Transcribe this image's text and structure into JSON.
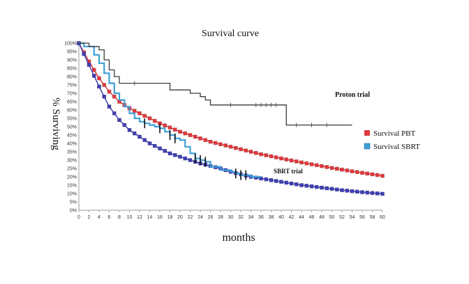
{
  "chart_data": {
    "type": "line",
    "title": "Survival curve",
    "xlabel": "months",
    "ylabel": "% Surviving",
    "xlim": [
      0,
      60
    ],
    "ylim": [
      0,
      100
    ],
    "x_ticks": [
      0,
      2,
      4,
      6,
      8,
      10,
      12,
      14,
      16,
      18,
      20,
      22,
      24,
      26,
      28,
      30,
      32,
      34,
      36,
      38,
      40,
      42,
      44,
      46,
      48,
      50,
      52,
      54,
      56,
      58,
      60
    ],
    "y_ticks": [
      0,
      5,
      10,
      15,
      20,
      25,
      30,
      35,
      40,
      45,
      50,
      55,
      60,
      65,
      70,
      75,
      80,
      85,
      90,
      95,
      100
    ],
    "y_tick_suffix": "%",
    "legend": {
      "placement": "right",
      "entries": [
        {
          "label": "Survival PBT",
          "color": "#e0393c"
        },
        {
          "label": "Survival SBRT",
          "color": "#3e9fd8"
        }
      ]
    },
    "annotations": {
      "proton_trial": "Proton trial",
      "sbrt_trial": "SBRT trial"
    },
    "series": [
      {
        "key": "proton",
        "style": "step",
        "color": "#3a3a3a",
        "x": [
          0,
          2,
          4,
          5,
          6,
          7,
          8,
          14,
          18,
          22,
          24,
          25,
          26,
          28,
          41,
          54
        ],
        "y": [
          100,
          98,
          96,
          90,
          84,
          80,
          76,
          76,
          72,
          70,
          68,
          66,
          63,
          63,
          51,
          51
        ],
        "censor_x": [
          11,
          30,
          35,
          36,
          37,
          38,
          39,
          43,
          46,
          49
        ]
      },
      {
        "key": "pbt",
        "name": "Survival PBT",
        "style": "markers",
        "color": "#e0393c",
        "x": [
          0,
          2,
          4,
          6,
          8,
          10,
          12,
          14,
          16,
          18,
          20,
          22,
          24,
          26,
          28,
          30,
          32,
          34,
          36,
          38,
          40,
          42,
          44,
          46,
          48,
          50,
          52,
          54,
          56,
          58,
          60
        ],
        "y": [
          100,
          89,
          79,
          71,
          65,
          61,
          58,
          55,
          52,
          49.5,
          47,
          45,
          43,
          41,
          39.5,
          38,
          36.5,
          35,
          33.5,
          32.3,
          31,
          29.8,
          28.6,
          27.5,
          26.4,
          25.3,
          24.3,
          23.3,
          22.4,
          21.5,
          20.6
        ]
      },
      {
        "key": "sbrt_model",
        "style": "markers",
        "color": "#3f3fb4",
        "x": [
          0,
          2,
          4,
          6,
          8,
          10,
          12,
          14,
          16,
          18,
          20,
          22,
          24,
          26,
          28,
          30,
          32,
          34,
          36,
          38,
          40,
          42,
          44,
          46,
          48,
          50,
          52,
          54,
          56,
          58,
          60
        ],
        "y": [
          100,
          87,
          74,
          62,
          54,
          48,
          44,
          40,
          37,
          34,
          32,
          30,
          28,
          26.5,
          25,
          23,
          21.5,
          20,
          19,
          18,
          17,
          16,
          15,
          14.3,
          13.5,
          12.8,
          12,
          11.4,
          10.8,
          10.3,
          9.8
        ]
      },
      {
        "key": "sbrt_trial",
        "name": "Survival SBRT",
        "style": "step",
        "color": "#3e9fd8",
        "x": [
          0,
          1,
          3,
          4,
          5,
          6,
          7,
          8,
          9,
          10,
          11,
          12,
          13,
          14,
          15,
          16,
          17,
          18,
          19,
          20,
          21,
          22,
          23,
          24,
          25,
          26,
          28,
          30,
          31,
          32,
          34,
          36
        ],
        "y": [
          100,
          98,
          93,
          88,
          82,
          76,
          70,
          66,
          62,
          58,
          55,
          53,
          52,
          51,
          50,
          49,
          47,
          45,
          43,
          42,
          38,
          34,
          31,
          30,
          29,
          26,
          24,
          23,
          22,
          21,
          20,
          20
        ],
        "censor_x": [
          13,
          16,
          18,
          19,
          23,
          24,
          25,
          31,
          32,
          33
        ]
      }
    ]
  }
}
